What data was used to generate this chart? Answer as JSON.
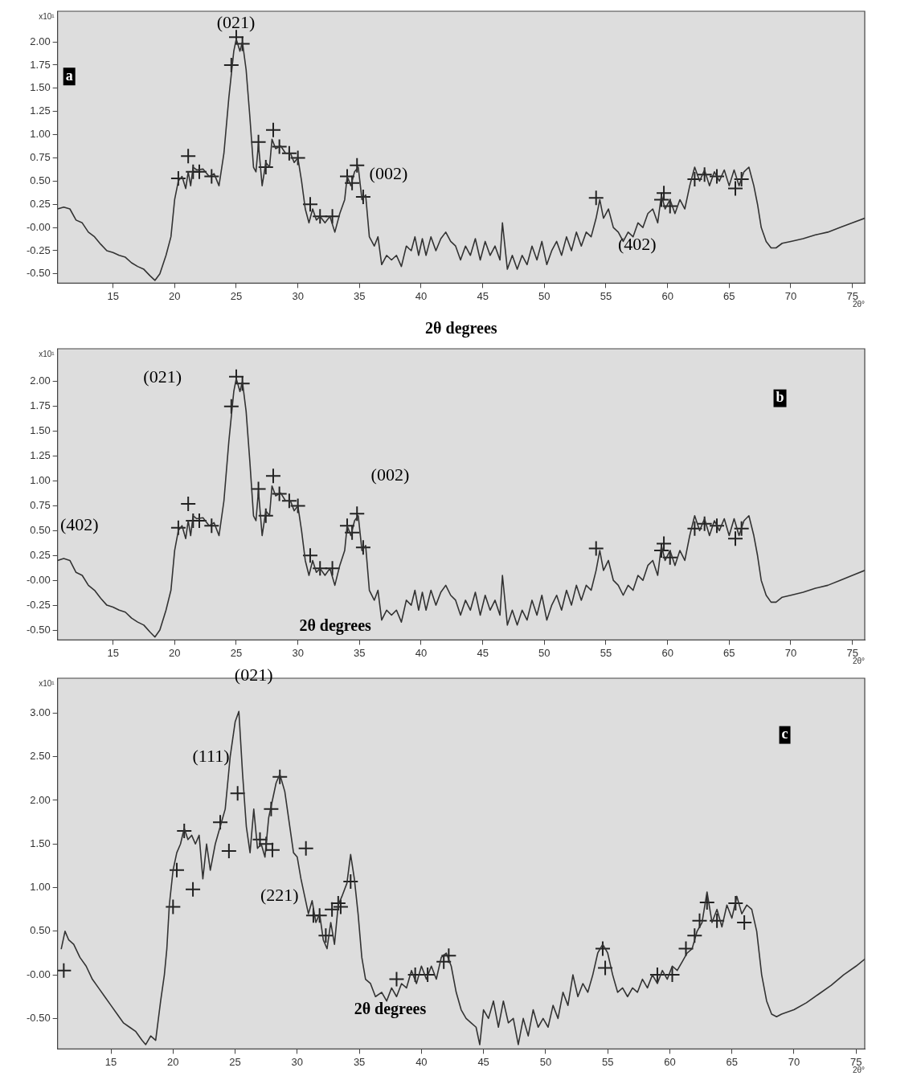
{
  "chart_data": [
    {
      "type": "line",
      "xlabel": "2θ°",
      "ylabel": "x10¹",
      "xlim": [
        10.5,
        76
      ],
      "xticks": [
        15,
        20,
        25,
        30,
        35,
        40,
        45,
        50,
        55,
        60,
        65,
        70,
        75
      ],
      "ylim": [
        -0.6,
        2.33
      ],
      "yticks": [
        {
          "value": -0.5,
          "label": "-0.50"
        },
        {
          "value": -0.25,
          "label": "-0.25"
        },
        {
          "value": 0,
          "label": "-0.00"
        },
        {
          "value": 0.25,
          "label": "0.25"
        },
        {
          "value": 0.5,
          "label": "0.50"
        },
        {
          "value": 0.75,
          "label": "0.75"
        },
        {
          "value": 1,
          "label": "1.00"
        },
        {
          "value": 1.25,
          "label": "1.25"
        },
        {
          "value": 1.5,
          "label": "1.50"
        },
        {
          "value": 1.75,
          "label": "1.75"
        },
        {
          "value": 2,
          "label": "2.00"
        }
      ],
      "grid": false,
      "legend": false,
      "annotations": [
        "a",
        "2θ degrees",
        "(021)",
        "(002)",
        "(402)"
      ],
      "series": [
        {
          "type": "line",
          "color": "#333333",
          "marker": "none",
          "x": [
            10.5,
            11,
            11.5,
            12,
            12.5,
            13,
            13.5,
            14,
            14.5,
            15,
            15.5,
            16,
            16.5,
            17,
            17.5,
            18,
            18.4,
            18.8,
            19.3,
            19.7,
            20,
            20.3,
            20.6,
            20.9,
            21.1,
            21.3,
            21.5,
            21.8,
            22.3,
            22.8,
            23.2,
            23.6,
            24,
            24.4,
            24.8,
            25,
            25.3,
            25.5,
            25.8,
            26.1,
            26.4,
            26.6,
            26.8,
            27.1,
            27.4,
            27.7,
            27.9,
            28.2,
            28.6,
            29,
            29.4,
            29.7,
            30,
            30.3,
            30.6,
            30.9,
            31.2,
            31.5,
            31.8,
            32.2,
            32.6,
            33,
            33.4,
            33.8,
            34,
            34.3,
            34.6,
            34.9,
            35.2,
            35.5,
            35.8,
            36.2,
            36.5,
            36.8,
            37.2,
            37.6,
            38,
            38.4,
            38.8,
            39.2,
            39.5,
            39.8,
            40.1,
            40.4,
            40.8,
            41.2,
            41.6,
            42,
            42.4,
            42.8,
            43.2,
            43.6,
            44,
            44.4,
            44.8,
            45.2,
            45.6,
            46,
            46.4,
            46.6,
            47,
            47.4,
            47.8,
            48.2,
            48.6,
            49,
            49.4,
            49.8,
            50.2,
            50.6,
            51,
            51.4,
            51.8,
            52.2,
            52.6,
            53,
            53.4,
            53.8,
            54.2,
            54.5,
            54.8,
            55.2,
            55.6,
            56,
            56.4,
            56.8,
            57.2,
            57.6,
            58,
            58.4,
            58.8,
            59.2,
            59.5,
            59.8,
            60.2,
            60.6,
            61,
            61.4,
            61.8,
            62.2,
            62.6,
            63,
            63.4,
            63.8,
            64.2,
            64.6,
            65,
            65.4,
            65.8,
            66.2,
            66.6,
            67,
            67.3,
            67.6,
            68,
            68.4,
            68.8,
            69.3,
            70,
            71,
            72,
            73,
            74,
            75,
            76
          ],
          "values": [
            0.2,
            0.22,
            0.2,
            0.08,
            0.05,
            -0.05,
            -0.1,
            -0.18,
            -0.25,
            -0.27,
            -0.3,
            -0.32,
            -0.38,
            -0.42,
            -0.45,
            -0.52,
            -0.57,
            -0.5,
            -0.3,
            -0.1,
            0.3,
            0.5,
            0.55,
            0.42,
            0.6,
            0.45,
            0.65,
            0.62,
            0.63,
            0.55,
            0.58,
            0.45,
            0.8,
            1.4,
            1.9,
            2.03,
            1.9,
            2.0,
            1.7,
            1.2,
            0.65,
            0.6,
            0.9,
            0.45,
            0.7,
            0.65,
            0.95,
            0.85,
            0.88,
            0.8,
            0.8,
            0.7,
            0.75,
            0.5,
            0.2,
            0.05,
            0.2,
            0.08,
            0.12,
            0.05,
            0.12,
            -0.05,
            0.15,
            0.3,
            0.55,
            0.45,
            0.6,
            0.65,
            0.3,
            0.35,
            -0.1,
            -0.2,
            -0.1,
            -0.4,
            -0.3,
            -0.35,
            -0.3,
            -0.42,
            -0.2,
            -0.25,
            -0.1,
            -0.3,
            -0.12,
            -0.3,
            -0.1,
            -0.25,
            -0.12,
            -0.05,
            -0.15,
            -0.2,
            -0.35,
            -0.2,
            -0.3,
            -0.12,
            -0.35,
            -0.15,
            -0.3,
            -0.2,
            -0.35,
            0.05,
            -0.45,
            -0.3,
            -0.45,
            -0.3,
            -0.4,
            -0.2,
            -0.35,
            -0.15,
            -0.4,
            -0.25,
            -0.15,
            -0.3,
            -0.1,
            -0.25,
            -0.05,
            -0.2,
            -0.05,
            -0.1,
            0.1,
            0.3,
            0.1,
            0.2,
            0.0,
            -0.05,
            -0.15,
            -0.05,
            -0.1,
            0.05,
            0.0,
            0.15,
            0.2,
            0.05,
            0.35,
            0.2,
            0.3,
            0.15,
            0.3,
            0.2,
            0.45,
            0.65,
            0.5,
            0.62,
            0.45,
            0.6,
            0.5,
            0.62,
            0.45,
            0.62,
            0.45,
            0.6,
            0.65,
            0.45,
            0.25,
            0.0,
            -0.15,
            -0.22,
            -0.22,
            -0.17,
            -0.15,
            -0.12,
            -0.08,
            -0.05,
            0.0,
            0.05,
            0.1
          ]
        },
        {
          "type": "scatter",
          "color": "#222222",
          "marker": "cross",
          "x": [
            20.3,
            21.1,
            21.5,
            22,
            23,
            24.6,
            25,
            25.5,
            26.8,
            27.4,
            28,
            28.5,
            29.3,
            30,
            31,
            31.8,
            32.8,
            34,
            34.4,
            34.8,
            35.3,
            54.2,
            59.5,
            59.7,
            60.2,
            62.2,
            63,
            64,
            65.5,
            66
          ],
          "values": [
            0.53,
            0.77,
            0.6,
            0.6,
            0.55,
            1.75,
            2.05,
            1.98,
            0.92,
            0.65,
            1.05,
            0.87,
            0.8,
            0.75,
            0.25,
            0.12,
            0.12,
            0.55,
            0.48,
            0.67,
            0.33,
            0.32,
            0.3,
            0.37,
            0.23,
            0.52,
            0.57,
            0.55,
            0.42,
            0.52
          ]
        }
      ]
    },
    {
      "type": "line",
      "xlabel": "2θ°",
      "ylabel": "x10¹",
      "xlim": [
        10.5,
        76
      ],
      "xticks": [
        15,
        20,
        25,
        30,
        35,
        40,
        45,
        50,
        55,
        60,
        65,
        70,
        75
      ],
      "ylim": [
        -0.6,
        2.33
      ],
      "yticks": [
        {
          "value": -0.5,
          "label": "-0.50"
        },
        {
          "value": -0.25,
          "label": "-0.25"
        },
        {
          "value": 0,
          "label": "-0.00"
        },
        {
          "value": 0.25,
          "label": "0.25"
        },
        {
          "value": 0.5,
          "label": "0.50"
        },
        {
          "value": 0.75,
          "label": "0.75"
        },
        {
          "value": 1,
          "label": "1.00"
        },
        {
          "value": 1.25,
          "label": "1.25"
        },
        {
          "value": 1.5,
          "label": "1.50"
        },
        {
          "value": 1.75,
          "label": "1.75"
        },
        {
          "value": 2,
          "label": "2.00"
        }
      ],
      "grid": false,
      "legend": false,
      "annotations": [
        "b",
        "2θ degrees",
        "(021)",
        "(002)",
        "(402)"
      ],
      "series": [
        {
          "type": "line",
          "color": "#333333",
          "marker": "none",
          "x": [
            10.5,
            11,
            11.5,
            12,
            12.5,
            13,
            13.5,
            14,
            14.5,
            15,
            15.5,
            16,
            16.5,
            17,
            17.5,
            18,
            18.4,
            18.8,
            19.3,
            19.7,
            20,
            20.3,
            20.6,
            20.9,
            21.1,
            21.3,
            21.5,
            21.8,
            22.3,
            22.8,
            23.2,
            23.6,
            24,
            24.4,
            24.8,
            25,
            25.3,
            25.5,
            25.8,
            26.1,
            26.4,
            26.6,
            26.8,
            27.1,
            27.4,
            27.7,
            27.9,
            28.2,
            28.6,
            29,
            29.4,
            29.7,
            30,
            30.3,
            30.6,
            30.9,
            31.2,
            31.5,
            31.8,
            32.2,
            32.6,
            33,
            33.4,
            33.8,
            34,
            34.3,
            34.6,
            34.9,
            35.2,
            35.5,
            35.8,
            36.2,
            36.5,
            36.8,
            37.2,
            37.6,
            38,
            38.4,
            38.8,
            39.2,
            39.5,
            39.8,
            40.1,
            40.4,
            40.8,
            41.2,
            41.6,
            42,
            42.4,
            42.8,
            43.2,
            43.6,
            44,
            44.4,
            44.8,
            45.2,
            45.6,
            46,
            46.4,
            46.6,
            47,
            47.4,
            47.8,
            48.2,
            48.6,
            49,
            49.4,
            49.8,
            50.2,
            50.6,
            51,
            51.4,
            51.8,
            52.2,
            52.6,
            53,
            53.4,
            53.8,
            54.2,
            54.5,
            54.8,
            55.2,
            55.6,
            56,
            56.4,
            56.8,
            57.2,
            57.6,
            58,
            58.4,
            58.8,
            59.2,
            59.5,
            59.8,
            60.2,
            60.6,
            61,
            61.4,
            61.8,
            62.2,
            62.6,
            63,
            63.4,
            63.8,
            64.2,
            64.6,
            65,
            65.4,
            65.8,
            66.2,
            66.6,
            67,
            67.3,
            67.6,
            68,
            68.4,
            68.8,
            69.3,
            70,
            71,
            72,
            73,
            74,
            75,
            76
          ],
          "values": [
            0.2,
            0.22,
            0.2,
            0.08,
            0.05,
            -0.05,
            -0.1,
            -0.18,
            -0.25,
            -0.27,
            -0.3,
            -0.32,
            -0.38,
            -0.42,
            -0.45,
            -0.52,
            -0.57,
            -0.5,
            -0.3,
            -0.1,
            0.3,
            0.5,
            0.55,
            0.42,
            0.6,
            0.45,
            0.65,
            0.62,
            0.63,
            0.55,
            0.58,
            0.45,
            0.8,
            1.4,
            1.9,
            2.03,
            1.9,
            2.0,
            1.7,
            1.2,
            0.65,
            0.6,
            0.9,
            0.45,
            0.7,
            0.65,
            0.95,
            0.85,
            0.88,
            0.8,
            0.8,
            0.7,
            0.75,
            0.5,
            0.2,
            0.05,
            0.2,
            0.08,
            0.12,
            0.05,
            0.12,
            -0.05,
            0.15,
            0.3,
            0.55,
            0.45,
            0.6,
            0.65,
            0.3,
            0.35,
            -0.1,
            -0.2,
            -0.1,
            -0.4,
            -0.3,
            -0.35,
            -0.3,
            -0.42,
            -0.2,
            -0.25,
            -0.1,
            -0.3,
            -0.12,
            -0.3,
            -0.1,
            -0.25,
            -0.12,
            -0.05,
            -0.15,
            -0.2,
            -0.35,
            -0.2,
            -0.3,
            -0.12,
            -0.35,
            -0.15,
            -0.3,
            -0.2,
            -0.35,
            0.05,
            -0.45,
            -0.3,
            -0.45,
            -0.3,
            -0.4,
            -0.2,
            -0.35,
            -0.15,
            -0.4,
            -0.25,
            -0.15,
            -0.3,
            -0.1,
            -0.25,
            -0.05,
            -0.2,
            -0.05,
            -0.1,
            0.1,
            0.3,
            0.1,
            0.2,
            0.0,
            -0.05,
            -0.15,
            -0.05,
            -0.1,
            0.05,
            0.0,
            0.15,
            0.2,
            0.05,
            0.35,
            0.2,
            0.3,
            0.15,
            0.3,
            0.2,
            0.45,
            0.65,
            0.5,
            0.62,
            0.45,
            0.6,
            0.5,
            0.62,
            0.45,
            0.62,
            0.45,
            0.6,
            0.65,
            0.45,
            0.25,
            0.0,
            -0.15,
            -0.22,
            -0.22,
            -0.17,
            -0.15,
            -0.12,
            -0.08,
            -0.05,
            0.0,
            0.05,
            0.1
          ]
        },
        {
          "type": "scatter",
          "color": "#222222",
          "marker": "cross",
          "x": [
            20.3,
            21.1,
            21.5,
            22,
            23,
            24.6,
            25,
            25.5,
            26.8,
            27.4,
            28,
            28.5,
            29.3,
            30,
            31,
            31.8,
            32.8,
            34,
            34.4,
            34.8,
            35.3,
            54.2,
            59.5,
            59.7,
            60.2,
            62.2,
            63,
            64,
            65.5,
            66
          ],
          "values": [
            0.53,
            0.77,
            0.6,
            0.6,
            0.55,
            1.75,
            2.05,
            1.98,
            0.92,
            0.65,
            1.05,
            0.87,
            0.8,
            0.75,
            0.25,
            0.12,
            0.12,
            0.55,
            0.48,
            0.67,
            0.33,
            0.32,
            0.3,
            0.37,
            0.23,
            0.52,
            0.57,
            0.55,
            0.42,
            0.52
          ]
        }
      ]
    },
    {
      "type": "line",
      "xlabel": "2θ°",
      "ylabel": "x10¹",
      "xlim": [
        10.7,
        75.7
      ],
      "xticks": [
        15,
        20,
        25,
        30,
        35,
        40,
        45,
        50,
        55,
        60,
        65,
        70,
        75
      ],
      "ylim": [
        -0.85,
        3.4
      ],
      "yticks": [
        {
          "value": -0.5,
          "label": "-0.50"
        },
        {
          "value": 0,
          "label": "-0.00"
        },
        {
          "value": 0.5,
          "label": "0.50"
        },
        {
          "value": 1,
          "label": "1.00"
        },
        {
          "value": 1.5,
          "label": "1.50"
        },
        {
          "value": 2,
          "label": "2.00"
        },
        {
          "value": 2.5,
          "label": "2.50"
        },
        {
          "value": 3,
          "label": "3.00"
        }
      ],
      "grid": false,
      "legend": false,
      "annotations": [
        "c",
        "2θ degrees",
        "(021)",
        "(111)",
        "(221)"
      ],
      "series": [
        {
          "type": "line",
          "color": "#333333",
          "marker": "none",
          "x": [
            11,
            11.3,
            11.6,
            12,
            12.5,
            13,
            13.5,
            14,
            14.5,
            15,
            15.5,
            16,
            16.5,
            17,
            17.5,
            17.8,
            18.2,
            18.6,
            19,
            19.3,
            19.5,
            19.7,
            20,
            20.3,
            20.6,
            20.9,
            21.2,
            21.5,
            21.8,
            22.1,
            22.4,
            22.7,
            23,
            23.4,
            23.8,
            24.2,
            24.6,
            25,
            25.3,
            25.6,
            25.9,
            26.2,
            26.5,
            26.8,
            27.1,
            27.4,
            27.7,
            28,
            28.3,
            28.6,
            29,
            29.4,
            29.7,
            30,
            30.3,
            30.6,
            30.9,
            31.2,
            31.5,
            31.8,
            32.1,
            32.4,
            32.7,
            33,
            33.3,
            33.6,
            34,
            34.3,
            34.6,
            34.9,
            35.2,
            35.5,
            35.9,
            36.3,
            36.8,
            37.2,
            37.6,
            38,
            38.4,
            38.8,
            39.2,
            39.6,
            40,
            40.4,
            40.8,
            41.2,
            41.6,
            42,
            42.4,
            42.8,
            43.2,
            43.6,
            44,
            44.4,
            44.7,
            45,
            45.4,
            45.8,
            46.2,
            46.6,
            47,
            47.4,
            47.8,
            48.2,
            48.6,
            49,
            49.4,
            49.8,
            50.2,
            50.6,
            51,
            51.4,
            51.8,
            52.2,
            52.6,
            53,
            53.4,
            53.8,
            54.2,
            54.6,
            55,
            55.4,
            55.8,
            56.2,
            56.6,
            57,
            57.4,
            57.8,
            58.2,
            58.6,
            59,
            59.4,
            59.8,
            60.2,
            60.6,
            61,
            61.4,
            61.8,
            62.2,
            62.6,
            63,
            63.4,
            63.8,
            64.2,
            64.6,
            65,
            65.4,
            65.8,
            66.2,
            66.6,
            67,
            67.4,
            67.8,
            68.2,
            68.6,
            69,
            70,
            71,
            72,
            73,
            74,
            75,
            75.7
          ],
          "values": [
            0.3,
            0.5,
            0.4,
            0.35,
            0.2,
            0.1,
            -0.05,
            -0.15,
            -0.25,
            -0.35,
            -0.45,
            -0.55,
            -0.6,
            -0.65,
            -0.75,
            -0.8,
            -0.7,
            -0.75,
            -0.3,
            0.0,
            0.3,
            0.8,
            1.2,
            1.4,
            1.5,
            1.68,
            1.55,
            1.6,
            1.5,
            1.6,
            1.1,
            1.5,
            1.2,
            1.5,
            1.7,
            1.9,
            2.5,
            2.9,
            3.02,
            2.3,
            1.7,
            1.4,
            1.9,
            1.45,
            1.5,
            1.35,
            1.8,
            2.0,
            2.2,
            2.3,
            2.1,
            1.7,
            1.4,
            1.35,
            1.1,
            0.9,
            0.7,
            0.85,
            0.6,
            0.7,
            0.4,
            0.3,
            0.6,
            0.35,
            0.8,
            0.9,
            1.05,
            1.38,
            1.1,
            0.7,
            0.2,
            -0.05,
            -0.1,
            -0.25,
            -0.2,
            -0.3,
            -0.15,
            -0.25,
            -0.1,
            -0.15,
            0.05,
            -0.1,
            0.1,
            -0.05,
            0.1,
            -0.05,
            0.2,
            0.25,
            0.1,
            -0.2,
            -0.4,
            -0.5,
            -0.55,
            -0.6,
            -0.8,
            -0.4,
            -0.5,
            -0.3,
            -0.6,
            -0.3,
            -0.55,
            -0.5,
            -0.8,
            -0.5,
            -0.7,
            -0.4,
            -0.6,
            -0.5,
            -0.6,
            -0.35,
            -0.5,
            -0.2,
            -0.35,
            0.0,
            -0.25,
            -0.1,
            -0.2,
            0.0,
            0.25,
            0.35,
            0.25,
            0.0,
            -0.2,
            -0.15,
            -0.25,
            -0.15,
            -0.2,
            -0.05,
            -0.15,
            0.0,
            -0.1,
            0.05,
            -0.05,
            0.1,
            0.05,
            0.15,
            0.25,
            0.3,
            0.5,
            0.6,
            0.95,
            0.6,
            0.75,
            0.55,
            0.8,
            0.65,
            0.9,
            0.7,
            0.8,
            0.75,
            0.5,
            0.0,
            -0.3,
            -0.45,
            -0.48,
            -0.45,
            -0.4,
            -0.32,
            -0.22,
            -0.12,
            0.0,
            0.1,
            0.18
          ]
        },
        {
          "type": "scatter",
          "color": "#222222",
          "marker": "cross",
          "x": [
            11.2,
            20,
            20.3,
            20.9,
            21.6,
            23.8,
            24.5,
            25.2,
            27,
            27.5,
            27.9,
            28,
            28.6,
            30.7,
            31.3,
            31.8,
            32.3,
            32.8,
            33.3,
            33.5,
            34.3,
            38,
            39.5,
            40.5,
            41.8,
            42.2,
            54.6,
            54.8,
            59,
            60.2,
            61.3,
            62,
            62.4,
            63,
            63.8,
            65.3,
            66
          ],
          "values": [
            0.05,
            0.78,
            1.2,
            1.65,
            0.98,
            1.75,
            1.42,
            2.08,
            1.55,
            1.5,
            1.9,
            1.43,
            2.27,
            1.45,
            0.68,
            0.68,
            0.45,
            0.75,
            0.82,
            0.78,
            1.07,
            -0.05,
            0,
            0,
            0.15,
            0.22,
            0.3,
            0.08,
            0,
            0,
            0.3,
            0.45,
            0.62,
            0.83,
            0.62,
            0.82,
            0.6
          ]
        }
      ]
    }
  ]
}
